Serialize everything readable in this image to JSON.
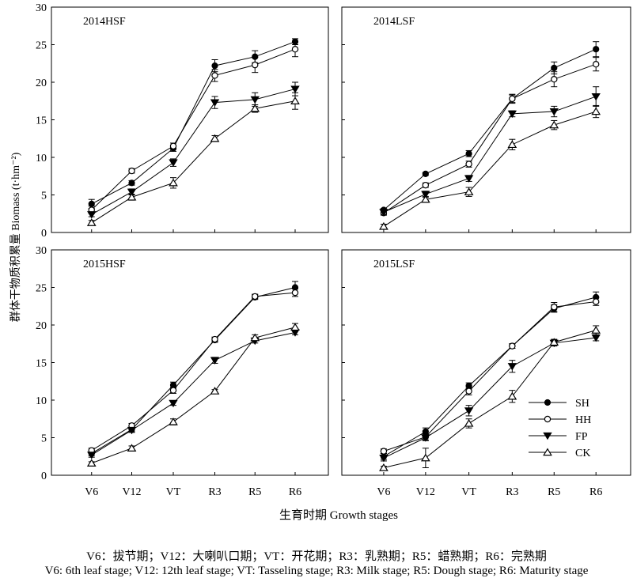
{
  "figure": {
    "ylabel": "群体干物质积累量 Biomass (t·hm⁻²)",
    "xlabel": "生育时期 Growth stages",
    "caption_zh": "V6：拔节期；V12：大喇叭口期；VT：开花期；R3：乳熟期；R5：蜡熟期；R6：完熟期",
    "caption_en": "V6: 6th leaf stage; V12: 12th leaf stage; VT: Tasseling stage; R3: Milk stage; R5: Dough stage; R6: Maturity stage",
    "legend": [
      {
        "name": "SH",
        "marker": "filled-circle"
      },
      {
        "name": "HH",
        "marker": "open-circle"
      },
      {
        "name": "FP",
        "marker": "filled-triangle-down"
      },
      {
        "name": "CK",
        "marker": "open-triangle-up"
      }
    ],
    "line_color": "#000000"
  },
  "chart_data": [
    {
      "type": "line",
      "title": "2014HSF",
      "categories": [
        "V6",
        "V12",
        "VT",
        "R3",
        "R5",
        "R6"
      ],
      "ylim": [
        0,
        30
      ],
      "yticks": [
        0,
        5,
        10,
        15,
        20,
        25,
        30
      ],
      "series": [
        {
          "name": "SH",
          "values": [
            3.8,
            6.6,
            11.2,
            22.2,
            23.4,
            25.4
          ],
          "errors": [
            0.6,
            0.3,
            0.4,
            0.8,
            0.8,
            0.4
          ]
        },
        {
          "name": "HH",
          "values": [
            3.0,
            8.2,
            11.5,
            20.9,
            22.3,
            24.4
          ],
          "errors": [
            0.5,
            0.3,
            0.4,
            0.8,
            1.0,
            1.0
          ]
        },
        {
          "name": "FP",
          "values": [
            2.4,
            5.4,
            9.3,
            17.3,
            17.7,
            19.1
          ],
          "errors": [
            0.3,
            0.4,
            0.5,
            0.8,
            0.9,
            0.9
          ]
        },
        {
          "name": "CK",
          "values": [
            1.3,
            4.7,
            6.6,
            12.5,
            16.5,
            17.5
          ],
          "errors": [
            0.3,
            0.4,
            0.7,
            0.4,
            0.5,
            1.1
          ]
        }
      ]
    },
    {
      "type": "line",
      "title": "2014LSF",
      "categories": [
        "V6",
        "V12",
        "VT",
        "R3",
        "R5",
        "R6"
      ],
      "ylim": [
        0,
        30
      ],
      "yticks": [
        0,
        5,
        10,
        15,
        20,
        25,
        30
      ],
      "series": [
        {
          "name": "SH",
          "values": [
            3.0,
            7.8,
            10.5,
            17.8,
            21.9,
            24.4
          ],
          "errors": [
            0.2,
            0.2,
            0.4,
            0.5,
            0.8,
            1.0
          ]
        },
        {
          "name": "HH",
          "values": [
            2.6,
            6.3,
            9.1,
            17.8,
            20.4,
            22.4
          ],
          "errors": [
            0.3,
            0.3,
            0.4,
            0.6,
            1.0,
            0.9
          ]
        },
        {
          "name": "FP",
          "values": [
            2.7,
            5.1,
            7.2,
            15.8,
            16.1,
            18.1
          ],
          "errors": [
            0.3,
            0.4,
            0.4,
            0.4,
            0.7,
            1.3
          ]
        },
        {
          "name": "CK",
          "values": [
            0.8,
            4.4,
            5.4,
            11.7,
            14.3,
            16.1
          ],
          "errors": [
            0.3,
            0.4,
            0.6,
            0.7,
            0.6,
            0.8
          ]
        }
      ]
    },
    {
      "type": "line",
      "title": "2015HSF",
      "categories": [
        "V6",
        "V12",
        "VT",
        "R3",
        "R5",
        "R6"
      ],
      "ylim": [
        0,
        30
      ],
      "yticks": [
        0,
        5,
        10,
        15,
        20,
        25,
        30
      ],
      "series": [
        {
          "name": "SH",
          "values": [
            2.9,
            6.1,
            12.0,
            18.0,
            23.7,
            25.0
          ],
          "errors": [
            0.3,
            0.3,
            0.4,
            0.3,
            0.3,
            0.8
          ]
        },
        {
          "name": "HH",
          "values": [
            3.3,
            6.6,
            11.3,
            18.1,
            23.8,
            24.3
          ],
          "errors": [
            0.3,
            0.3,
            0.4,
            0.3,
            0.3,
            0.5
          ]
        },
        {
          "name": "FP",
          "values": [
            2.7,
            6.0,
            9.6,
            15.3,
            17.9,
            19.0
          ],
          "errors": [
            0.3,
            0.3,
            0.3,
            0.4,
            0.3,
            0.3
          ]
        },
        {
          "name": "CK",
          "values": [
            1.6,
            3.6,
            7.1,
            11.2,
            18.3,
            19.7
          ],
          "errors": [
            0.2,
            0.3,
            0.4,
            0.2,
            0.4,
            0.5
          ]
        }
      ]
    },
    {
      "type": "line",
      "title": "2015LSF",
      "categories": [
        "V6",
        "V12",
        "VT",
        "R3",
        "R5",
        "R6"
      ],
      "ylim": [
        0,
        30
      ],
      "yticks": [
        0,
        5,
        10,
        15,
        20,
        25,
        30
      ],
      "series": [
        {
          "name": "SH",
          "values": [
            2.5,
            5.8,
            11.9,
            17.2,
            22.2,
            23.7
          ],
          "errors": [
            0.4,
            0.5,
            0.4,
            0.3,
            0.5,
            0.7
          ]
        },
        {
          "name": "HH",
          "values": [
            3.2,
            5.1,
            11.2,
            17.2,
            22.4,
            23.1
          ],
          "errors": [
            0.3,
            0.4,
            0.5,
            0.3,
            0.6,
            0.5
          ]
        },
        {
          "name": "FP",
          "values": [
            2.3,
            5.0,
            8.6,
            14.5,
            17.6,
            18.3
          ],
          "errors": [
            0.4,
            0.4,
            0.7,
            0.8,
            0.4,
            0.4
          ]
        },
        {
          "name": "CK",
          "values": [
            1.0,
            2.3,
            6.9,
            10.5,
            17.7,
            19.3
          ],
          "errors": [
            0.2,
            1.3,
            0.6,
            0.8,
            0.4,
            0.6
          ]
        }
      ]
    }
  ]
}
